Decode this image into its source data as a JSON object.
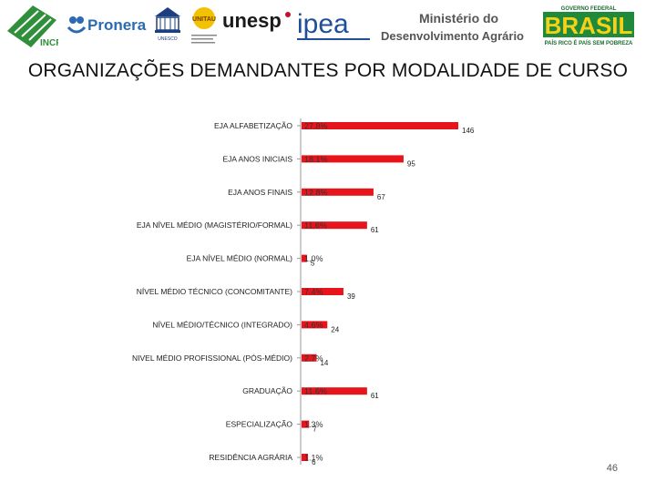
{
  "header": {
    "logos": {
      "incra": "INCRA",
      "pronera": "Pronera",
      "unesco": "UNESCO",
      "unitau": "UNITAU",
      "unesp": "unesp",
      "ipea": "ipea",
      "ministerio_line1": "Ministério do",
      "ministerio_line2": "Desenvolvimento Agrário",
      "brasil_top": "GOVERNO FEDERAL",
      "brasil_main": "BRASIL",
      "brasil_tagline": "PAÍS RICO É PAÍS SEM POBREZA"
    }
  },
  "chart_data": {
    "type": "bar",
    "orientation": "horizontal",
    "title": "ORGANIZAÇÕES DEMANDANTES POR MODALIDADE DE CURSO",
    "categories": [
      "EJA ALFABETIZAÇÃO",
      "EJA ANOS INICIAIS",
      "EJA ANOS FINAIS",
      "EJA NÍVEL MÉDIO (MAGISTÉRIO/FORMAL)",
      "EJA NÍVEL MÉDIO (NORMAL)",
      "NÍVEL MÉDIO TÉCNICO (CONCOMITANTE)",
      "NÍVEL MÉDIO/TÉCNICO (INTEGRADO)",
      "NIVEL MÉDIO PROFISSIONAL (PÓS-MÉDIO)",
      "GRADUAÇÃO",
      "ESPECIALIZAÇÃO",
      "RESIDÊNCIA AGRÁRIA"
    ],
    "values": [
      146,
      95,
      67,
      61,
      5,
      39,
      24,
      14,
      61,
      7,
      6
    ],
    "percent_labels": [
      "27.8%",
      "18.1%",
      "12.8%",
      "11.6%",
      "1.0%",
      "7.4%",
      "4.6%",
      "2.7%",
      "11.6%",
      "1.3%",
      "1.1%"
    ],
    "xlim": [
      0,
      150
    ],
    "bar_color": "#e8141b",
    "legend": "none",
    "grid": false
  },
  "footer": {
    "page_number": "46"
  }
}
